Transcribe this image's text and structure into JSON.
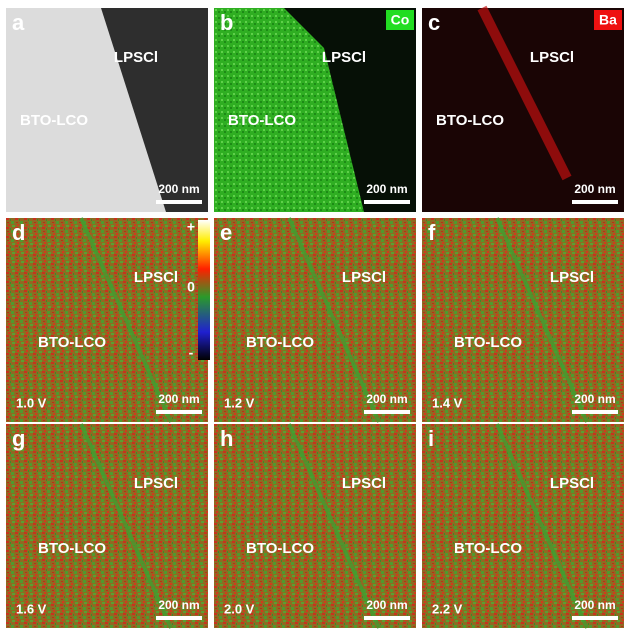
{
  "panels": [
    {
      "letter": "a",
      "material_top": "LPSCl",
      "material_left": "BTO-LCO",
      "scale_bar": "200 nm"
    },
    {
      "letter": "b",
      "element": "Co",
      "material_top": "LPSCl",
      "material_left": "BTO-LCO",
      "scale_bar": "200 nm"
    },
    {
      "letter": "c",
      "element": "Ba",
      "material_top": "LPSCl",
      "material_left": "BTO-LCO",
      "scale_bar": "200 nm"
    },
    {
      "letter": "d",
      "voltage": "1.0 V",
      "material_top": "LPSCl",
      "material_left": "BTO-LCO",
      "scale_bar": "200 nm"
    },
    {
      "letter": "e",
      "voltage": "1.2 V",
      "material_top": "LPSCl",
      "material_left": "BTO-LCO",
      "scale_bar": "200 nm"
    },
    {
      "letter": "f",
      "voltage": "1.4 V",
      "material_top": "LPSCl",
      "material_left": "BTO-LCO",
      "scale_bar": "200 nm"
    },
    {
      "letter": "g",
      "voltage": "1.6 V",
      "material_top": "LPSCl",
      "material_left": "BTO-LCO",
      "scale_bar": "200 nm"
    },
    {
      "letter": "h",
      "voltage": "2.0 V",
      "material_top": "LPSCl",
      "material_left": "BTO-LCO",
      "scale_bar": "200 nm"
    },
    {
      "letter": "i",
      "voltage": "2.2 V",
      "material_top": "LPSCl",
      "material_left": "BTO-LCO",
      "scale_bar": "200 nm"
    }
  ],
  "colorbar": {
    "max": "+",
    "mid": "0",
    "min": "-"
  }
}
